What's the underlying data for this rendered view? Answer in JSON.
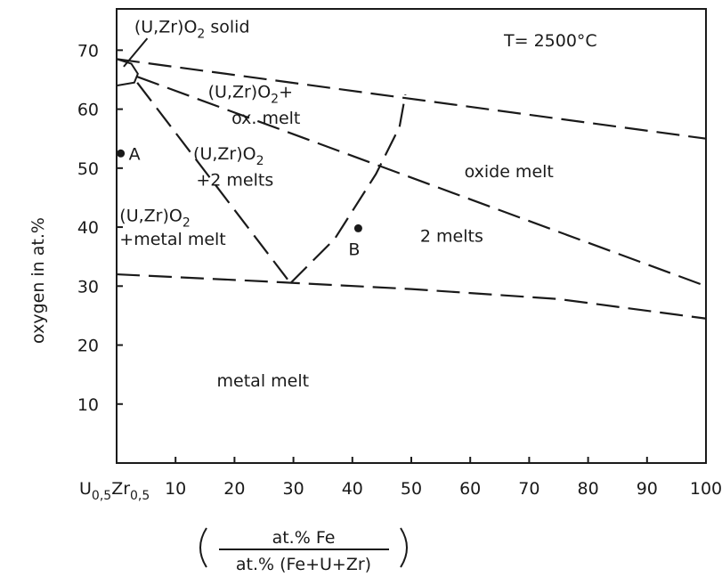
{
  "chart_data": {
    "type": "line",
    "title": "",
    "annotation_temperature": "T= 2500°C",
    "ylabel": "oxygen in at.%",
    "xlabel_numerator": "at.% Fe",
    "xlabel_denominator": "at.% (Fe+U+Zr)",
    "xlim": [
      0,
      100
    ],
    "ylim": [
      0,
      77
    ],
    "x_ticks": [
      0,
      10,
      20,
      30,
      40,
      50,
      60,
      70,
      80,
      90,
      100
    ],
    "x_tick_labels": [
      "U0,5Zr0,5",
      "10",
      "20",
      "30",
      "40",
      "50",
      "60",
      "70",
      "80",
      "90",
      "100"
    ],
    "y_ticks": [
      10,
      20,
      30,
      40,
      50,
      60,
      70
    ],
    "y_tick_labels": [
      "10",
      "20",
      "30",
      "40",
      "50",
      "60",
      "70"
    ],
    "grid": false,
    "series": [
      {
        "style": "dashed",
        "x": [
          0,
          100
        ],
        "y": [
          68.5,
          55
        ]
      },
      {
        "style": "dashed",
        "x": [
          0,
          25,
          50,
          75,
          100
        ],
        "y": [
          32,
          30.8,
          29.5,
          27.8,
          24.5
        ]
      },
      {
        "style": "dashed",
        "x": [
          3.5,
          100
        ],
        "y": [
          65.5,
          30
        ]
      },
      {
        "style": "dashed",
        "x": [
          3.5,
          29.5
        ],
        "y": [
          64.5,
          30.5
        ]
      },
      {
        "style": "dashed",
        "x": [
          29.5,
          37,
          44,
          48,
          49
        ],
        "y": [
          30.5,
          38,
          49,
          57,
          62.5
        ]
      },
      {
        "style": "solid",
        "x": [
          0,
          2.5,
          3.6,
          3,
          0
        ],
        "y": [
          68.5,
          67.7,
          66,
          64.5,
          64
        ]
      }
    ],
    "points": [
      {
        "label": "A",
        "x": 0.7,
        "y": 52.5
      },
      {
        "label": "B",
        "x": 41,
        "y": 39.8
      }
    ],
    "region_labels": [
      {
        "text": "(U,Zr)O2 solid",
        "x": 3,
        "y": 73
      },
      {
        "text": "(U,Zr)O2+",
        "x": 15.5,
        "y": 62
      },
      {
        "text": "ox. melt",
        "x": 19.5,
        "y": 57.5
      },
      {
        "text": "(U,Zr)O2",
        "x": 13,
        "y": 51.5
      },
      {
        "text": "+2 melts",
        "x": 13.5,
        "y": 47
      },
      {
        "text": "(U,Zr)O2",
        "x": 0.5,
        "y": 41
      },
      {
        "text": "+metal melt",
        "x": 0.5,
        "y": 37
      },
      {
        "text": "oxide melt",
        "x": 59,
        "y": 48.5
      },
      {
        "text": "2 melts",
        "x": 51.5,
        "y": 37.5
      },
      {
        "text": "metal melt",
        "x": 17,
        "y": 13
      }
    ]
  }
}
